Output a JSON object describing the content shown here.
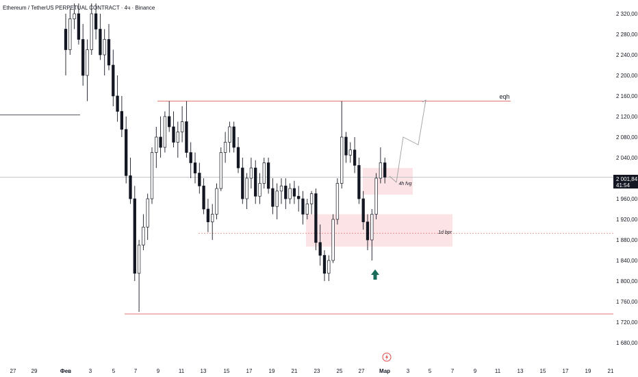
{
  "header": {
    "title": "Ethereum / TetherUS PERPETUAL CONTRACT · 4ч · Binance"
  },
  "price_tag": {
    "price": "2 001,84",
    "countdown": "41:54"
  },
  "annotations": {
    "eqh": "eqh",
    "fvg": "4h fvg",
    "bpr": "1d bpr"
  },
  "icons": {
    "flash": "lightning-icon",
    "arrow": "up-arrow-icon"
  },
  "colors": {
    "bull": "#ffffff",
    "bear": "#131722",
    "wick": "#131722",
    "zone_fill": "#fce4e6",
    "level_line": "#e57373",
    "arrow": "#1b6b5a",
    "grid_text": "#131722",
    "price_line": "#b2b5be"
  },
  "chart_data": {
    "type": "candlestick",
    "title": "Ethereum / TetherUS PERPETUAL CONTRACT · 4ч · Binance",
    "ylim": [
      1660,
      2340
    ],
    "y_ticks": [
      1680,
      1720,
      1760,
      1800,
      1840,
      1880,
      1920,
      1960,
      2000,
      2040,
      2080,
      2120,
      2160,
      2200,
      2240,
      2280,
      2320
    ],
    "y_tick_labels": [
      "1 680,00",
      "1 720,00",
      "1 760,00",
      "1 800,00",
      "1 840,00",
      "1 880,00",
      "1 920,00",
      "1 960,00",
      "2 000,00",
      "2 040,00",
      "2 080,00",
      "2 120,00",
      "2 160,00",
      "2 200,00",
      "2 240,00",
      "2 280,00",
      "2 320,00"
    ],
    "x_ticks": [
      {
        "label": "27",
        "px": 19
      },
      {
        "label": "29",
        "px": 50
      },
      {
        "label": "Фев",
        "px": 96
      },
      {
        "label": "3",
        "px": 132
      },
      {
        "label": "5",
        "px": 166
      },
      {
        "label": "7",
        "px": 198
      },
      {
        "label": "9",
        "px": 231
      },
      {
        "label": "11",
        "px": 265
      },
      {
        "label": "13",
        "px": 297
      },
      {
        "label": "15",
        "px": 331
      },
      {
        "label": "17",
        "px": 364
      },
      {
        "label": "19",
        "px": 397
      },
      {
        "label": "21",
        "px": 430
      },
      {
        "label": "23",
        "px": 463
      },
      {
        "label": "25",
        "px": 496
      },
      {
        "label": "27",
        "px": 528
      },
      {
        "label": "Мар",
        "px": 562
      },
      {
        "label": "3",
        "px": 596
      },
      {
        "label": "5",
        "px": 628
      },
      {
        "label": "7",
        "px": 661
      },
      {
        "label": "9",
        "px": 694
      },
      {
        "label": "11",
        "px": 727
      },
      {
        "label": "13",
        "px": 760
      },
      {
        "label": "15",
        "px": 793
      },
      {
        "label": "17",
        "px": 826
      },
      {
        "label": "19",
        "px": 859
      },
      {
        "label": "21",
        "px": 892
      }
    ],
    "last_price": 2001.84,
    "levels": [
      {
        "name": "eqh",
        "price": 2150
      },
      {
        "name": "low",
        "price": 1736
      },
      {
        "name": "bpr-mid",
        "price": 1893
      },
      {
        "name": "left-level",
        "price": 2123
      }
    ],
    "zones": [
      {
        "name": "4h fvg",
        "top": 2020,
        "bottom": 1968
      },
      {
        "name": "1d bpr",
        "top": 1930,
        "bottom": 1867
      }
    ],
    "projection": [
      2004,
      1992,
      2080,
      2065,
      2152
    ],
    "candles": [
      [
        2290,
        2320,
        2200,
        2250
      ],
      [
        2250,
        2330,
        2240,
        2310
      ],
      [
        2310,
        2340,
        2290,
        2320
      ],
      [
        2320,
        2340,
        2260,
        2270
      ],
      [
        2270,
        2300,
        2180,
        2200
      ],
      [
        2200,
        2270,
        2150,
        2250
      ],
      [
        2250,
        2340,
        2240,
        2320
      ],
      [
        2320,
        2340,
        2270,
        2290
      ],
      [
        2290,
        2320,
        2230,
        2240
      ],
      [
        2240,
        2290,
        2200,
        2270
      ],
      [
        2270,
        2300,
        2210,
        2220
      ],
      [
        2220,
        2250,
        2140,
        2160
      ],
      [
        2160,
        2200,
        2110,
        2130
      ],
      [
        2130,
        2160,
        2080,
        2095
      ],
      [
        2095,
        2120,
        1990,
        2005
      ],
      [
        2005,
        2040,
        1950,
        1960
      ],
      [
        1960,
        1985,
        1800,
        1815
      ],
      [
        1815,
        1880,
        1740,
        1870
      ],
      [
        1870,
        1930,
        1860,
        1905
      ],
      [
        1905,
        1970,
        1880,
        1960
      ],
      [
        1960,
        2060,
        1950,
        2050
      ],
      [
        2050,
        2100,
        2020,
        2080
      ],
      [
        2080,
        2120,
        2040,
        2060
      ],
      [
        2060,
        2130,
        2050,
        2120
      ],
      [
        2120,
        2150,
        2090,
        2100
      ],
      [
        2100,
        2130,
        2060,
        2070
      ],
      [
        2070,
        2110,
        2040,
        2090
      ],
      [
        2090,
        2140,
        2070,
        2110
      ],
      [
        2110,
        2150,
        2040,
        2050
      ],
      [
        2050,
        2070,
        2000,
        2030
      ],
      [
        2030,
        2050,
        1990,
        2010
      ],
      [
        2010,
        2030,
        1970,
        1985
      ],
      [
        1985,
        2000,
        1930,
        1940
      ],
      [
        1940,
        1960,
        1895,
        1915
      ],
      [
        1915,
        1950,
        1880,
        1930
      ],
      [
        1930,
        1990,
        1920,
        1980
      ],
      [
        1980,
        2060,
        1975,
        2050
      ],
      [
        2050,
        2090,
        2030,
        2070
      ],
      [
        2070,
        2110,
        2050,
        2100
      ],
      [
        2100,
        2110,
        2050,
        2060
      ],
      [
        2060,
        2080,
        2010,
        2020
      ],
      [
        2020,
        2040,
        1950,
        1960
      ],
      [
        1960,
        2010,
        1940,
        2000
      ],
      [
        2000,
        2040,
        1980,
        2020
      ],
      [
        2020,
        2035,
        1950,
        1965
      ],
      [
        1965,
        2010,
        1950,
        1990
      ],
      [
        1990,
        2040,
        1980,
        2030
      ],
      [
        2030,
        2040,
        1970,
        1980
      ],
      [
        1980,
        2000,
        1930,
        1945
      ],
      [
        1945,
        1990,
        1920,
        1975
      ],
      [
        1975,
        2000,
        1950,
        1985
      ],
      [
        1985,
        2000,
        1940,
        1960
      ],
      [
        1960,
        1990,
        1950,
        1980
      ],
      [
        1980,
        1995,
        1950,
        1965
      ],
      [
        1965,
        1985,
        1935,
        1960
      ],
      [
        1960,
        1975,
        1910,
        1930
      ],
      [
        1930,
        1960,
        1920,
        1950
      ],
      [
        1950,
        1975,
        1930,
        1970
      ],
      [
        1970,
        1980,
        1860,
        1875
      ],
      [
        1875,
        1910,
        1830,
        1850
      ],
      [
        1850,
        1860,
        1800,
        1815
      ],
      [
        1815,
        1850,
        1800,
        1840
      ],
      [
        1840,
        1930,
        1835,
        1920
      ],
      [
        1920,
        2000,
        1910,
        1990
      ],
      [
        1990,
        2150,
        1980,
        2080
      ],
      [
        2080,
        2090,
        2030,
        2045
      ],
      [
        2045,
        2070,
        2030,
        2055
      ],
      [
        2055,
        2080,
        2010,
        2025
      ],
      [
        2025,
        2040,
        1950,
        1960
      ],
      [
        1960,
        1975,
        1900,
        1915
      ],
      [
        1915,
        1930,
        1860,
        1880
      ],
      [
        1880,
        1940,
        1840,
        1930
      ],
      [
        1930,
        2010,
        1920,
        2000
      ],
      [
        2000,
        2060,
        1990,
        2030
      ],
      [
        2030,
        2040,
        1990,
        2002
      ]
    ]
  }
}
